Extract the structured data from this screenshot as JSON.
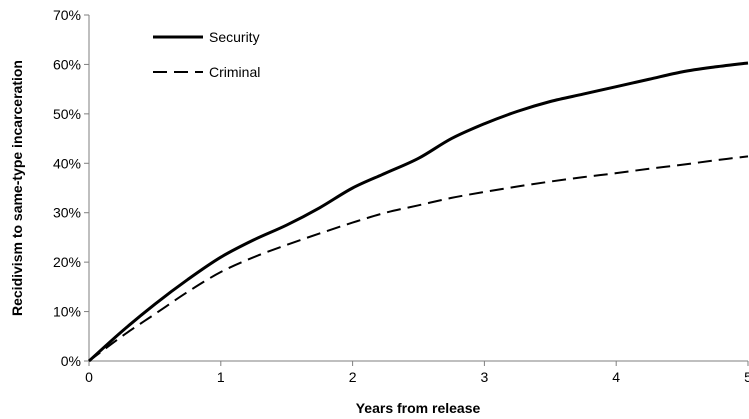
{
  "chart_data": {
    "type": "line",
    "title": "",
    "xlabel": "Years from release",
    "ylabel": "Recidivism to same-type incarceration",
    "xlim": [
      0,
      5
    ],
    "ylim": [
      0,
      70
    ],
    "x_ticks": [
      "0",
      "1",
      "2",
      "3",
      "4",
      "5"
    ],
    "y_ticks": [
      "0%",
      "10%",
      "20%",
      "30%",
      "40%",
      "50%",
      "60%",
      "70%"
    ],
    "grid": false,
    "legend_position": "top-left",
    "series": [
      {
        "name": "Security",
        "style": "solid",
        "color": "#000000",
        "x": [
          0,
          0.25,
          0.5,
          0.75,
          1,
          1.25,
          1.5,
          1.75,
          2,
          2.25,
          2.5,
          2.75,
          3,
          3.25,
          3.5,
          3.75,
          4,
          4.25,
          4.5,
          4.75,
          5
        ],
        "y": [
          0,
          6,
          11.5,
          16.5,
          21,
          24.5,
          27.5,
          31,
          35,
          38,
          41,
          45,
          48,
          50.5,
          52.5,
          54,
          55.5,
          57,
          58.5,
          59.5,
          60.3
        ]
      },
      {
        "name": "Criminal",
        "style": "dashed",
        "color": "#000000",
        "x": [
          0,
          0.25,
          0.5,
          0.75,
          1,
          1.25,
          1.5,
          1.75,
          2,
          2.25,
          2.5,
          2.75,
          3,
          3.25,
          3.5,
          3.75,
          4,
          4.25,
          4.5,
          4.75,
          5
        ],
        "y": [
          0,
          5,
          9.5,
          14,
          18,
          21,
          23.5,
          25.8,
          28,
          30,
          31.5,
          33,
          34.2,
          35.3,
          36.3,
          37.2,
          38,
          38.9,
          39.7,
          40.6,
          41.4
        ]
      }
    ]
  }
}
